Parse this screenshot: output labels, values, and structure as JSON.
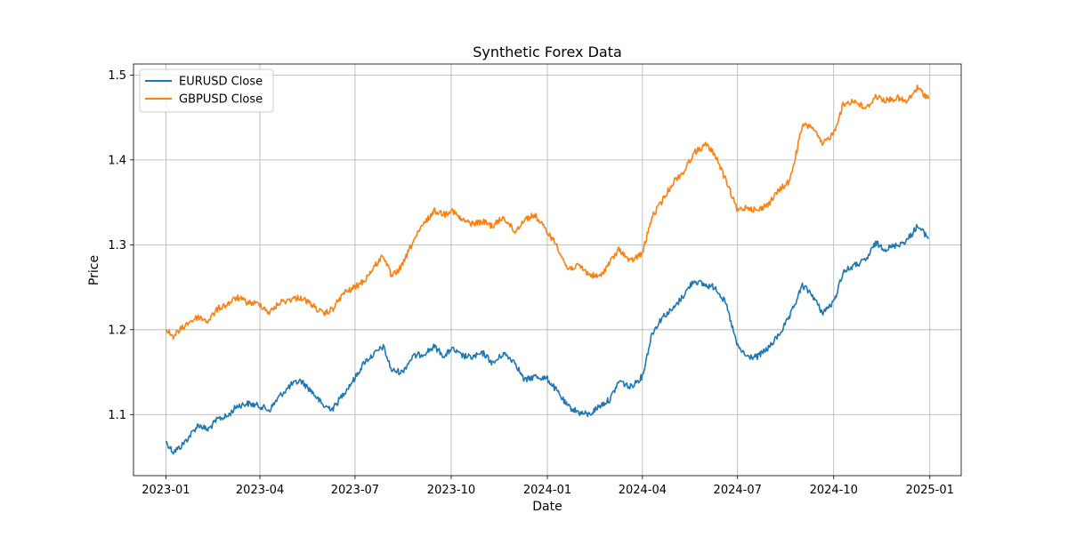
{
  "chart_data": {
    "type": "line",
    "title": "Synthetic Forex Data",
    "xlabel": "Date",
    "ylabel": "Price",
    "x_range": [
      "2022-12-01",
      "2025-01-31"
    ],
    "ylim": [
      1.028,
      1.513
    ],
    "x_ticks": [
      "2023-01",
      "2023-04",
      "2023-07",
      "2023-10",
      "2024-01",
      "2024-04",
      "2024-07",
      "2024-10",
      "2025-01"
    ],
    "y_ticks": [
      1.1,
      1.2,
      1.3,
      1.4,
      1.5
    ],
    "y_tick_labels": [
      "1.1",
      "1.2",
      "1.3",
      "1.4",
      "1.5"
    ],
    "grid": true,
    "legend_position": "top-left",
    "series": [
      {
        "name": "EURUSD Close",
        "color": "#1f77b4",
        "points": [
          [
            "2023-01-01",
            1.068
          ],
          [
            "2023-01-08",
            1.056
          ],
          [
            "2023-01-15",
            1.062
          ],
          [
            "2023-01-22",
            1.072
          ],
          [
            "2023-02-01",
            1.088
          ],
          [
            "2023-02-10",
            1.082
          ],
          [
            "2023-02-20",
            1.095
          ],
          [
            "2023-03-01",
            1.098
          ],
          [
            "2023-03-10",
            1.11
          ],
          [
            "2023-03-20",
            1.113
          ],
          [
            "2023-04-01",
            1.11
          ],
          [
            "2023-04-10",
            1.105
          ],
          [
            "2023-04-20",
            1.122
          ],
          [
            "2023-05-01",
            1.135
          ],
          [
            "2023-05-10",
            1.14
          ],
          [
            "2023-05-20",
            1.128
          ],
          [
            "2023-06-01",
            1.11
          ],
          [
            "2023-06-10",
            1.107
          ],
          [
            "2023-06-20",
            1.125
          ],
          [
            "2023-07-01",
            1.143
          ],
          [
            "2023-07-10",
            1.162
          ],
          [
            "2023-07-20",
            1.172
          ],
          [
            "2023-07-28",
            1.18
          ],
          [
            "2023-08-05",
            1.152
          ],
          [
            "2023-08-15",
            1.15
          ],
          [
            "2023-08-25",
            1.168
          ],
          [
            "2023-09-05",
            1.172
          ],
          [
            "2023-09-15",
            1.18
          ],
          [
            "2023-09-25",
            1.168
          ],
          [
            "2023-10-01",
            1.178
          ],
          [
            "2023-10-10",
            1.17
          ],
          [
            "2023-10-20",
            1.167
          ],
          [
            "2023-11-01",
            1.172
          ],
          [
            "2023-11-10",
            1.16
          ],
          [
            "2023-11-20",
            1.172
          ],
          [
            "2023-12-01",
            1.162
          ],
          [
            "2023-12-10",
            1.14
          ],
          [
            "2023-12-20",
            1.145
          ],
          [
            "2024-01-01",
            1.142
          ],
          [
            "2024-01-10",
            1.128
          ],
          [
            "2024-01-20",
            1.11
          ],
          [
            "2024-02-01",
            1.102
          ],
          [
            "2024-02-10",
            1.1
          ],
          [
            "2024-02-20",
            1.11
          ],
          [
            "2024-03-01",
            1.118
          ],
          [
            "2024-03-10",
            1.14
          ],
          [
            "2024-03-20",
            1.132
          ],
          [
            "2024-04-01",
            1.145
          ],
          [
            "2024-04-10",
            1.195
          ],
          [
            "2024-04-20",
            1.215
          ],
          [
            "2024-05-01",
            1.225
          ],
          [
            "2024-05-10",
            1.24
          ],
          [
            "2024-05-20",
            1.258
          ],
          [
            "2024-06-01",
            1.252
          ],
          [
            "2024-06-10",
            1.25
          ],
          [
            "2024-06-20",
            1.23
          ],
          [
            "2024-07-01",
            1.18
          ],
          [
            "2024-07-10",
            1.168
          ],
          [
            "2024-07-20",
            1.168
          ],
          [
            "2024-08-01",
            1.18
          ],
          [
            "2024-08-10",
            1.195
          ],
          [
            "2024-08-20",
            1.215
          ],
          [
            "2024-09-01",
            1.252
          ],
          [
            "2024-09-10",
            1.242
          ],
          [
            "2024-09-20",
            1.22
          ],
          [
            "2024-10-01",
            1.232
          ],
          [
            "2024-10-10",
            1.268
          ],
          [
            "2024-10-20",
            1.275
          ],
          [
            "2024-11-01",
            1.282
          ],
          [
            "2024-11-10",
            1.302
          ],
          [
            "2024-11-20",
            1.295
          ],
          [
            "2024-12-01",
            1.3
          ],
          [
            "2024-12-10",
            1.305
          ],
          [
            "2024-12-20",
            1.322
          ],
          [
            "2024-12-31",
            1.308
          ]
        ]
      },
      {
        "name": "GBPUSD Close",
        "color": "#ff7f0e",
        "points": [
          [
            "2023-01-01",
            1.2
          ],
          [
            "2023-01-08",
            1.192
          ],
          [
            "2023-01-15",
            1.2
          ],
          [
            "2023-01-22",
            1.208
          ],
          [
            "2023-02-01",
            1.215
          ],
          [
            "2023-02-10",
            1.21
          ],
          [
            "2023-02-20",
            1.225
          ],
          [
            "2023-03-01",
            1.23
          ],
          [
            "2023-03-10",
            1.238
          ],
          [
            "2023-03-20",
            1.232
          ],
          [
            "2023-04-01",
            1.23
          ],
          [
            "2023-04-10",
            1.22
          ],
          [
            "2023-04-20",
            1.232
          ],
          [
            "2023-05-01",
            1.236
          ],
          [
            "2023-05-10",
            1.238
          ],
          [
            "2023-05-20",
            1.23
          ],
          [
            "2023-06-01",
            1.218
          ],
          [
            "2023-06-10",
            1.225
          ],
          [
            "2023-06-20",
            1.243
          ],
          [
            "2023-07-01",
            1.25
          ],
          [
            "2023-07-10",
            1.258
          ],
          [
            "2023-07-20",
            1.275
          ],
          [
            "2023-07-28",
            1.288
          ],
          [
            "2023-08-05",
            1.262
          ],
          [
            "2023-08-15",
            1.275
          ],
          [
            "2023-08-25",
            1.303
          ],
          [
            "2023-09-05",
            1.325
          ],
          [
            "2023-09-15",
            1.34
          ],
          [
            "2023-09-25",
            1.336
          ],
          [
            "2023-10-01",
            1.342
          ],
          [
            "2023-10-10",
            1.33
          ],
          [
            "2023-10-20",
            1.325
          ],
          [
            "2023-11-01",
            1.327
          ],
          [
            "2023-11-10",
            1.322
          ],
          [
            "2023-11-20",
            1.333
          ],
          [
            "2023-12-01",
            1.315
          ],
          [
            "2023-12-10",
            1.33
          ],
          [
            "2023-12-20",
            1.335
          ],
          [
            "2024-01-01",
            1.315
          ],
          [
            "2024-01-10",
            1.3
          ],
          [
            "2024-01-20",
            1.272
          ],
          [
            "2024-02-01",
            1.275
          ],
          [
            "2024-02-10",
            1.265
          ],
          [
            "2024-02-20",
            1.262
          ],
          [
            "2024-03-01",
            1.28
          ],
          [
            "2024-03-10",
            1.295
          ],
          [
            "2024-03-20",
            1.28
          ],
          [
            "2024-04-01",
            1.29
          ],
          [
            "2024-04-10",
            1.332
          ],
          [
            "2024-04-20",
            1.352
          ],
          [
            "2024-05-01",
            1.375
          ],
          [
            "2024-05-10",
            1.385
          ],
          [
            "2024-05-20",
            1.408
          ],
          [
            "2024-06-01",
            1.418
          ],
          [
            "2024-06-10",
            1.405
          ],
          [
            "2024-06-20",
            1.375
          ],
          [
            "2024-07-01",
            1.34
          ],
          [
            "2024-07-10",
            1.345
          ],
          [
            "2024-07-20",
            1.34
          ],
          [
            "2024-08-01",
            1.35
          ],
          [
            "2024-08-10",
            1.365
          ],
          [
            "2024-08-20",
            1.375
          ],
          [
            "2024-09-01",
            1.44
          ],
          [
            "2024-09-10",
            1.44
          ],
          [
            "2024-09-20",
            1.418
          ],
          [
            "2024-10-01",
            1.432
          ],
          [
            "2024-10-10",
            1.465
          ],
          [
            "2024-10-20",
            1.47
          ],
          [
            "2024-11-01",
            1.46
          ],
          [
            "2024-11-10",
            1.475
          ],
          [
            "2024-11-20",
            1.47
          ],
          [
            "2024-12-01",
            1.473
          ],
          [
            "2024-12-10",
            1.468
          ],
          [
            "2024-12-20",
            1.485
          ],
          [
            "2024-12-31",
            1.472
          ]
        ]
      }
    ]
  }
}
